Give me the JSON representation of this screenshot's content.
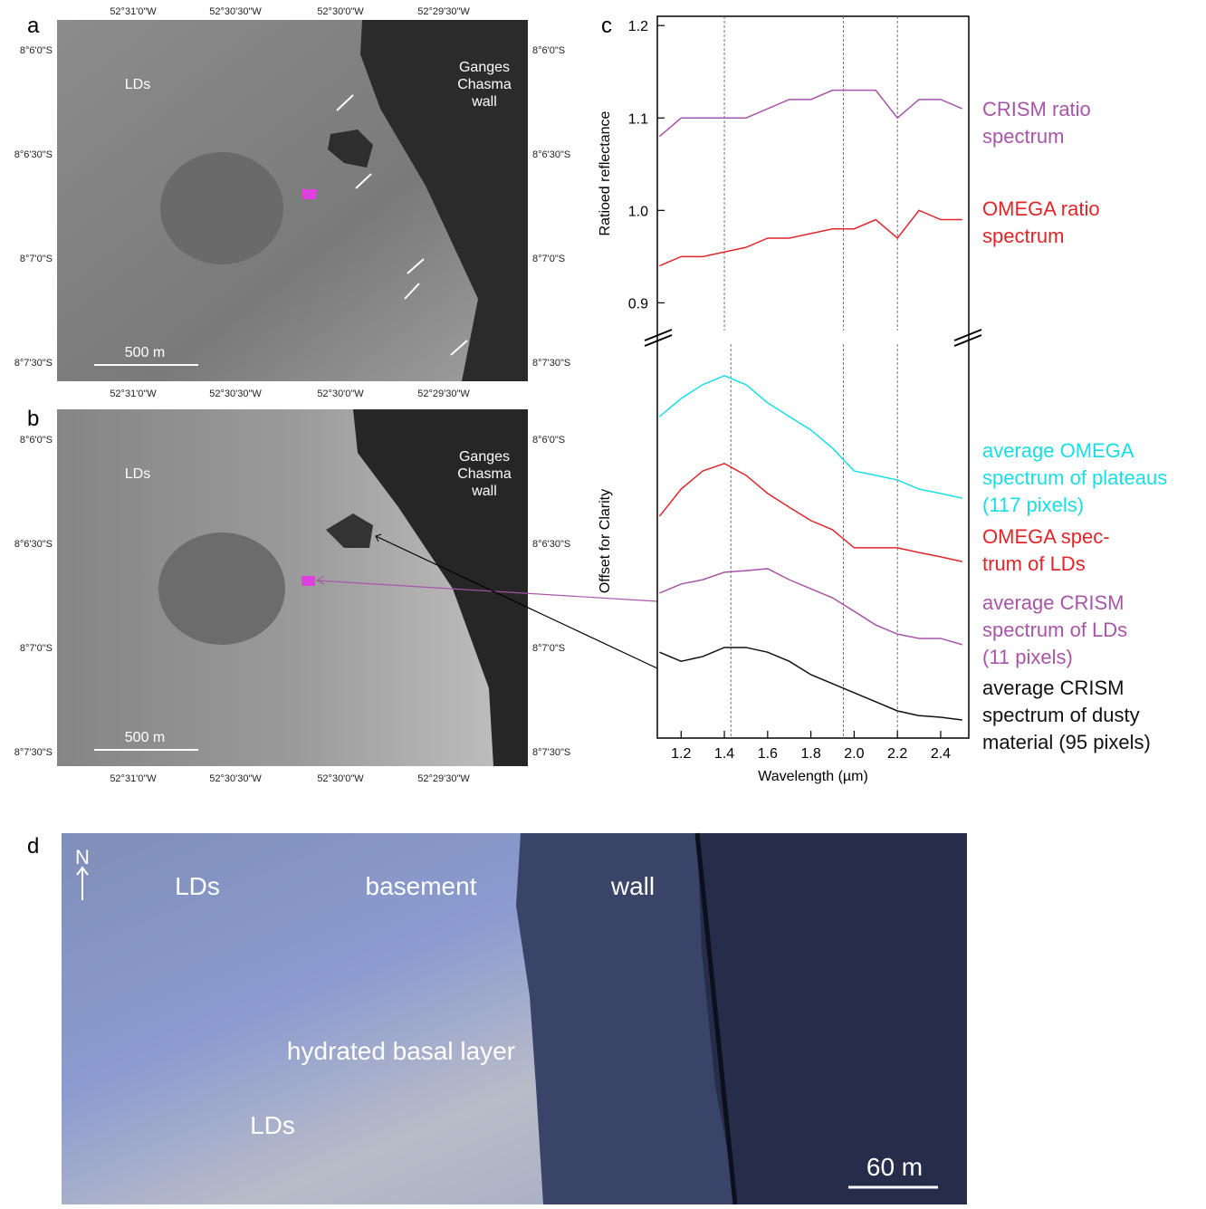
{
  "panel_a": {
    "label": "a",
    "top_ticks": [
      "52°31'0\"W",
      "52°30'30\"W",
      "52°30'0\"W",
      "52°29'30\"W"
    ],
    "bottom_ticks": [
      "52°31'0\"W",
      "52°30'30\"W",
      "52°30'0\"W",
      "52°29'30\"W"
    ],
    "left_ticks": [
      "8°6'0\"S",
      "8°6'30\"S",
      "8°7'0\"S",
      "8°7'30\"S"
    ],
    "right_ticks": [
      "8°6'0\"S",
      "8°6'30\"S",
      "8°7'0\"S",
      "8°7'30\"S"
    ],
    "lds": "LDs",
    "wall": "Ganges\nChasma\nwall",
    "scale_bar": "500 m"
  },
  "panel_b": {
    "label": "b",
    "bottom_ticks": [
      "52°31'0\"W",
      "52°30'30\"W",
      "52°30'0\"W",
      "52°29'30\"W"
    ],
    "left_ticks": [
      "8°6'0\"S",
      "8°6'30\"S",
      "8°7'0\"S",
      "8°7'30\"S"
    ],
    "right_ticks": [
      "8°6'0\"S",
      "8°6'30\"S",
      "8°7'0\"S",
      "8°7'30\"S"
    ],
    "lds": "LDs",
    "wall": "Ganges\nChasma\nwall",
    "scale_bar": "500 m"
  },
  "panel_c": {
    "label": "c"
  },
  "chart_data": [
    {
      "type": "line",
      "ylabel": "Ratioed reflectance",
      "x": [
        1.1,
        1.2,
        1.3,
        1.4,
        1.5,
        1.6,
        1.7,
        1.8,
        1.9,
        2.0,
        2.1,
        2.2,
        2.3,
        2.4,
        2.5
      ],
      "xlim": [
        1.09,
        2.53
      ],
      "ylim": [
        0.87,
        1.21
      ],
      "yticks": [
        0.9,
        {
          "value": 1,
          "label": "1.0"
        },
        1.1,
        1.2
      ],
      "vlines": [
        1.4,
        1.95,
        2.2
      ],
      "series": [
        {
          "name": "CRISM ratio\nspectrum",
          "color": "#a855a8",
          "values": [
            1.08,
            1.1,
            1.1,
            1.1,
            1.1,
            1.11,
            1.12,
            1.12,
            1.13,
            1.13,
            1.13,
            1.1,
            1.12,
            1.12,
            1.11
          ]
        },
        {
          "name": "OMEGA ratio\nspectrum",
          "color": "#e0262a",
          "values": [
            0.94,
            0.95,
            0.95,
            0.955,
            0.96,
            0.97,
            0.97,
            0.975,
            0.98,
            0.98,
            0.99,
            0.97,
            1.0,
            0.99,
            0.99
          ]
        }
      ]
    },
    {
      "type": "line",
      "ylabel": "Offset for Clarity",
      "xlabel": "Wavelength (µm)",
      "x": [
        1.1,
        1.2,
        1.3,
        1.4,
        1.5,
        1.6,
        1.7,
        1.8,
        1.9,
        2.0,
        2.1,
        2.2,
        2.3,
        2.4,
        2.5
      ],
      "xlim": [
        1.09,
        2.53
      ],
      "ylim": [
        0,
        100
      ],
      "xticks": [
        1.2,
        1.4,
        1.6,
        1.8,
        {
          "value": 2,
          "label": "2.0"
        },
        2.2,
        2.4
      ],
      "vlines": [
        1.43,
        1.95,
        2.2
      ],
      "series": [
        {
          "name": "average OMEGA\nspectrum of plateaus\n(117 pixels)",
          "color": "#19dde3",
          "values": [
            81.6,
            86.2,
            89.7,
            92.0,
            89.7,
            85.1,
            81.6,
            78.2,
            73.6,
            67.8,
            66.7,
            65.5,
            63.2,
            62.1,
            60.9
          ]
        },
        {
          "name": "OMEGA spec-\ntrum of LDs",
          "color": "#e0262a",
          "values": [
            56.3,
            63.2,
            67.8,
            69.7,
            66.7,
            62.1,
            58.6,
            55.2,
            52.9,
            48.3,
            48.3,
            48.3,
            47.1,
            46.0,
            44.8
          ]
        },
        {
          "name": "average CRISM\nspectrum of LDs\n(11 pixels)",
          "color": "#a855a8",
          "values": [
            36.8,
            39.1,
            40.2,
            42.1,
            42.5,
            43.0,
            40.2,
            37.9,
            35.6,
            32.2,
            28.7,
            26.4,
            25.3,
            25.3,
            23.7
          ]
        },
        {
          "name": "average CRISM\nspectrum of  dusty\nmaterial (95 pixels)",
          "color": "#111111",
          "values": [
            21.8,
            19.5,
            20.7,
            23.0,
            23.0,
            21.8,
            19.5,
            16.1,
            13.8,
            11.5,
            9.2,
            6.9,
            5.7,
            5.3,
            4.6
          ]
        }
      ]
    }
  ],
  "panel_d": {
    "label": "d",
    "north": "N",
    "labels": [
      "LDs",
      "basement",
      "wall",
      "hydrated basal layer",
      "LDs"
    ],
    "scale_bar": "60 m"
  }
}
